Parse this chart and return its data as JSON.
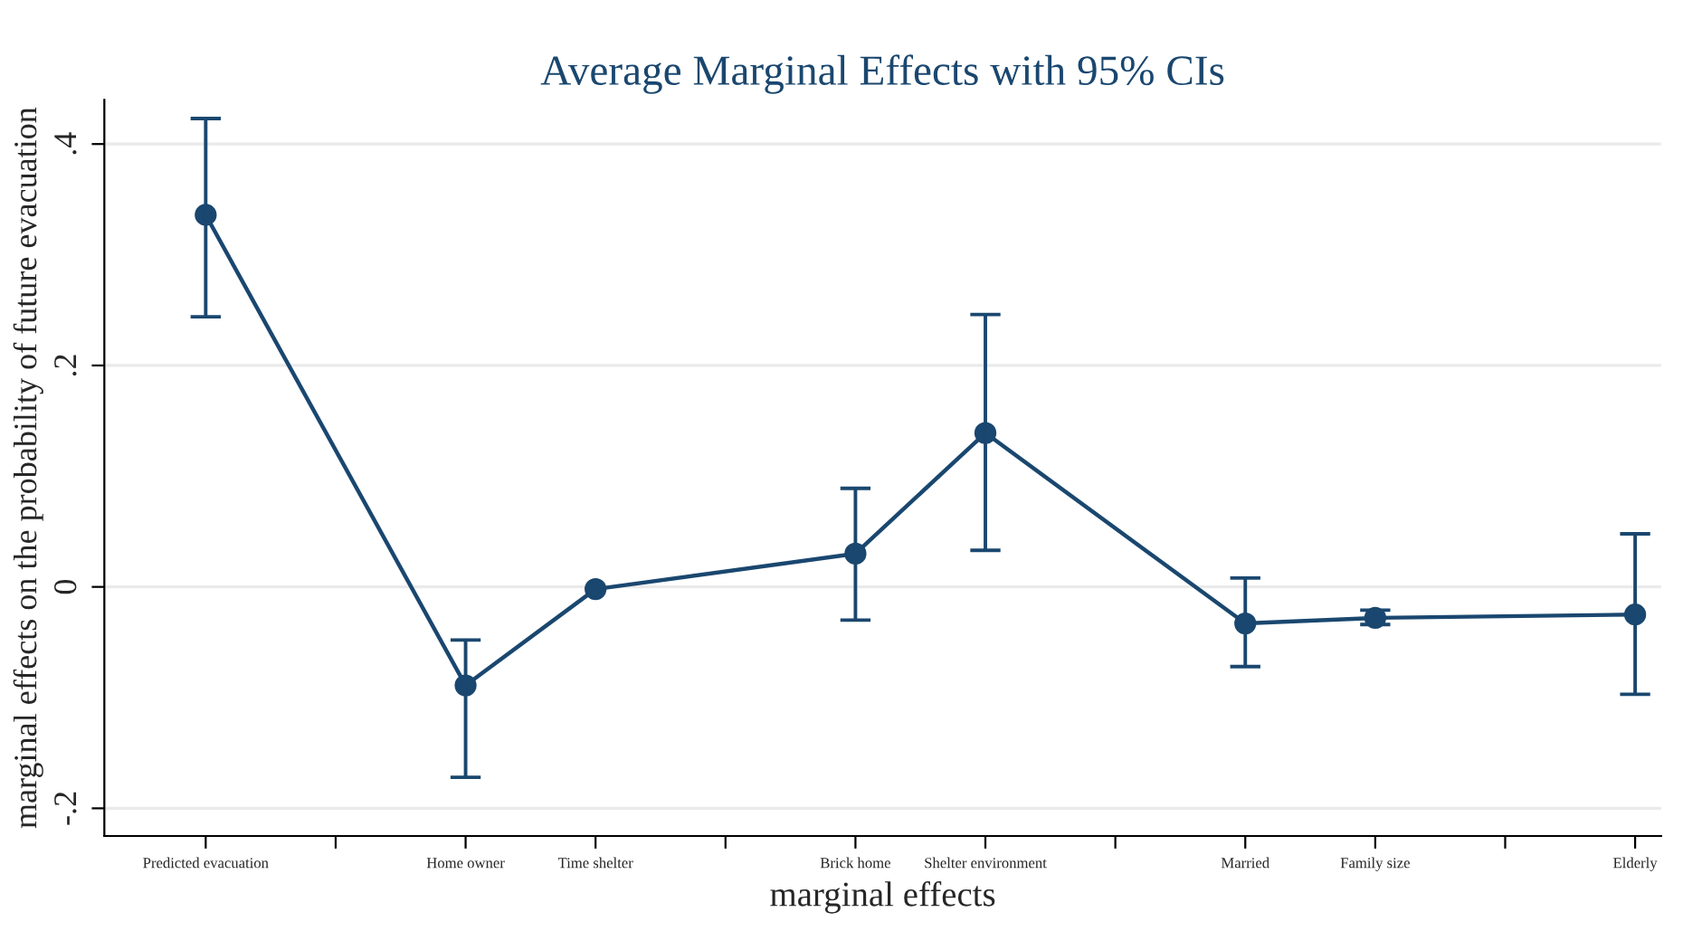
{
  "chart_data": {
    "type": "line",
    "title": "Average Marginal Effects with 95% CIs",
    "xlabel": "marginal effects",
    "ylabel": "marginal effects on the probability of future evacuation",
    "categories": [
      "Predicted evacuation",
      null,
      "Home owner",
      "Time shelter",
      null,
      "Brick home",
      "Shelter environment",
      null,
      "Married",
      "Family size",
      null,
      "Elderly"
    ],
    "series": [
      {
        "color": "#1a476f",
        "values": [
          0.336,
          null,
          -0.089,
          -0.002,
          null,
          0.03,
          0.139,
          null,
          -0.033,
          -0.028,
          null,
          -0.025
        ],
        "errors": [
          [
            0.244,
            0.423
          ],
          null,
          [
            -0.172,
            -0.048
          ],
          null,
          null,
          [
            -0.03,
            0.089
          ],
          [
            0.033,
            0.246
          ],
          null,
          [
            -0.072,
            0.008
          ],
          [
            -0.034,
            -0.021
          ],
          null,
          [
            -0.097,
            0.048
          ]
        ]
      }
    ],
    "ylim": [
      -0.225,
      0.44
    ],
    "yticks": [
      {
        "value": -0.2,
        "label": "-.2"
      },
      {
        "value": 0,
        "label": "0"
      },
      {
        "value": 0.2,
        "label": ".2"
      },
      {
        "value": 0.4,
        "label": ".4"
      }
    ],
    "grid": "y",
    "marker": "circle",
    "line_style": "solid"
  }
}
